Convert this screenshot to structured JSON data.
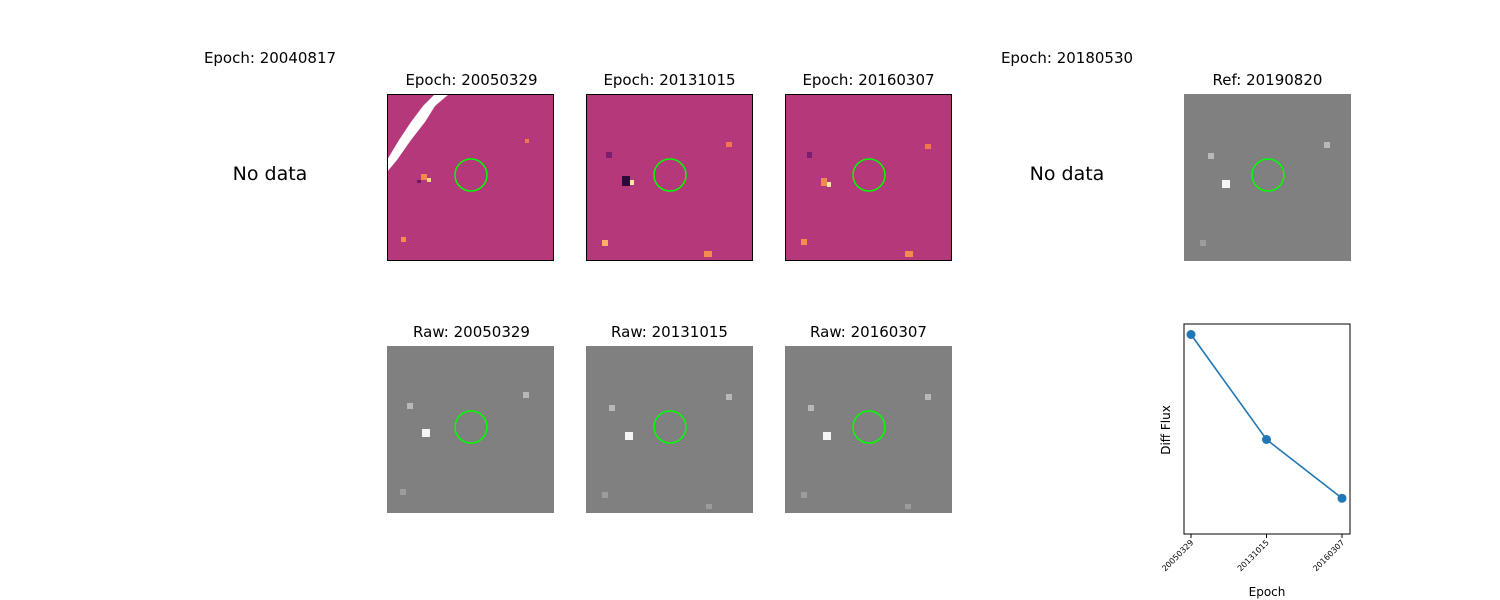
{
  "row1": {
    "epoch1": {
      "title": "Epoch: 20040817",
      "message": "No data"
    },
    "epoch2": {
      "title": "Epoch: 20050329"
    },
    "epoch3": {
      "title": "Epoch: 20131015"
    },
    "epoch4": {
      "title": "Epoch: 20160307"
    },
    "epoch5": {
      "title": "Epoch: 20180530",
      "message": "No data"
    },
    "ref": {
      "title": "Ref: 20190820"
    }
  },
  "row2": {
    "raw1": {
      "title": "Raw: 20050329"
    },
    "raw2": {
      "title": "Raw: 20131015"
    },
    "raw3": {
      "title": "Raw: 20160307"
    }
  },
  "colors": {
    "diff_background": "#b4387a",
    "raw_background": "#808080",
    "target_circle": "#00ff00",
    "series_line": "#1f77b4"
  },
  "chart_data": {
    "type": "line",
    "x": [
      "20050329",
      "20131015",
      "20160307"
    ],
    "series": [
      {
        "values": [
          0.95,
          0.45,
          0.17
        ]
      }
    ],
    "ylabel": "Diff Flux",
    "xlabel": "Epoch",
    "y_tick_labels": "none",
    "grid": false
  }
}
